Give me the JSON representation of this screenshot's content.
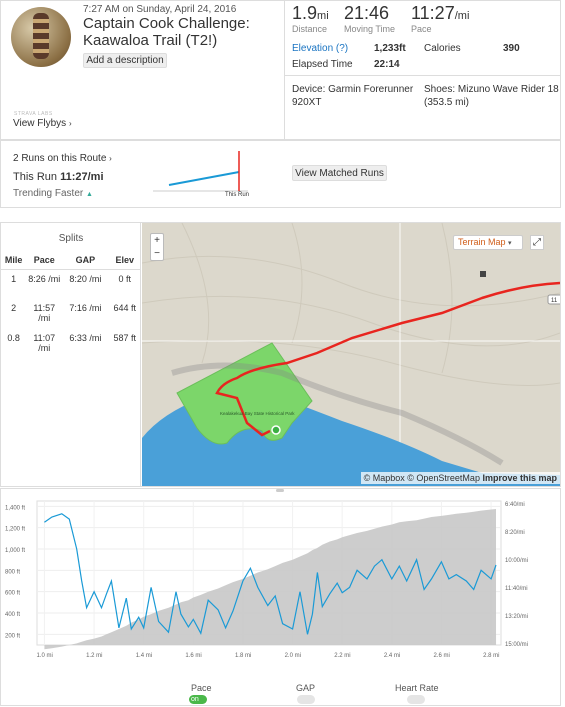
{
  "activity": {
    "date": "7:27 AM on Sunday, April 24, 2016",
    "title": "Captain Cook Challenge: Kaawaloa Trail (T2!)",
    "add_description": "Add a description"
  },
  "flyby": {
    "lab": "STRAVA LABS",
    "label": "View Flybys",
    "chevron": "›"
  },
  "stats": {
    "distance": {
      "value": "1.9",
      "unit": "mi",
      "label": "Distance"
    },
    "moving": {
      "value": "21:46",
      "label": "Moving Time"
    },
    "pace": {
      "value": "11:27",
      "unit": "/mi",
      "label": "Pace"
    }
  },
  "details": {
    "elevation_label": "Elevation (?)",
    "elevation_value": "1,233ft",
    "calories_label": "Calories",
    "calories_value": "390",
    "elapsed_label": "Elapsed Time",
    "elapsed_value": "22:14",
    "device": "Device: Garmin Forerunner 920XT",
    "shoes": "Shoes: Mizuno Wave Rider 18 (353.5 mi)"
  },
  "route": {
    "runs_on_route": "2 Runs on this Route",
    "this_run_label": "This Run",
    "this_run_value": "11:27/mi",
    "trend": "Trending Faster",
    "trend_icon": "▲",
    "spark_label": "This Run",
    "button": "View Matched Runs",
    "chevron": "›"
  },
  "splits": {
    "title": "Splits",
    "headers": [
      "Mile",
      "Pace",
      "GAP",
      "Elev"
    ],
    "rows": [
      [
        "1",
        "8:26 /mi",
        "8:20 /mi",
        "0 ft"
      ],
      [
        "2",
        "11:57 /mi",
        "7:16 /mi",
        "644 ft"
      ],
      [
        "0.8",
        "11:07 /mi",
        "6:33 /mi",
        "587 ft"
      ]
    ]
  },
  "map": {
    "zoom_in": "+",
    "zoom_out": "−",
    "terrain": "Terrain Map",
    "terrain_caret": "▾",
    "expand": "⤢",
    "road": "11",
    "park": "Kealakekua Bay State Historical Park",
    "attribution": "© Mapbox © OpenStreetMap",
    "improve": "Improve this map",
    "colors": {
      "land": "#dcd8cc",
      "water": "#4aa0d8",
      "park": "#7cd66a",
      "route": "#e8251f"
    }
  },
  "chart_data": {
    "type": "area",
    "x": [
      1.0,
      1.03,
      1.07,
      1.1,
      1.13,
      1.15,
      1.17,
      1.2,
      1.23,
      1.25,
      1.27,
      1.3,
      1.33,
      1.35,
      1.38,
      1.4,
      1.43,
      1.46,
      1.5,
      1.53,
      1.55,
      1.58,
      1.6,
      1.63,
      1.66,
      1.7,
      1.73,
      1.76,
      1.8,
      1.83,
      1.86,
      1.9,
      1.93,
      1.96,
      2.0,
      2.03,
      2.06,
      2.08,
      2.1,
      2.12,
      2.15,
      2.18,
      2.2,
      2.23,
      2.26,
      2.3,
      2.33,
      2.36,
      2.4,
      2.43,
      2.46,
      2.5,
      2.53,
      2.56,
      2.6,
      2.63,
      2.66,
      2.7,
      2.73,
      2.76,
      2.8,
      2.82
    ],
    "series": [
      {
        "name": "Pace",
        "type": "line",
        "axis": "right",
        "values": [
          1250,
          1300,
          1330,
          1280,
          1000,
          700,
          450,
          600,
          450,
          580,
          700,
          260,
          540,
          250,
          360,
          260,
          640,
          320,
          220,
          600,
          390,
          270,
          340,
          210,
          520,
          430,
          260,
          420,
          700,
          820,
          640,
          470,
          560,
          300,
          250,
          600,
          200,
          390,
          780,
          460,
          580,
          680,
          590,
          640,
          800,
          720,
          840,
          900,
          720,
          840,
          700,
          900,
          620,
          720,
          880,
          720,
          760,
          700,
          620,
          800,
          720,
          850
        ]
      },
      {
        "name": "Elevation",
        "type": "area",
        "axis": "left",
        "values": [
          60,
          70,
          85,
          100,
          115,
          130,
          145,
          160,
          180,
          200,
          220,
          250,
          280,
          310,
          340,
          365,
          390,
          420,
          450,
          480,
          500,
          520,
          545,
          570,
          600,
          630,
          660,
          690,
          720,
          750,
          780,
          810,
          840,
          870,
          900,
          930,
          960,
          990,
          1010,
          1040,
          1070,
          1090,
          1110,
          1130,
          1150,
          1170,
          1190,
          1210,
          1230,
          1250,
          1260,
          1270,
          1285,
          1300,
          1310,
          1320,
          1330,
          1340,
          1350,
          1360,
          1370,
          1375
        ]
      }
    ],
    "left_ticks": [
      "1,400 ft",
      "1,200 ft",
      "1,000 ft",
      "800 ft",
      "600 ft",
      "400 ft",
      "200 ft"
    ],
    "right_ticks": [
      "6:40/mi",
      "8:20/mi",
      "10:00/mi",
      "11:40/mi",
      "13:20/mi",
      "15:00/mi"
    ],
    "x_ticks": [
      "1.0 mi",
      "1.2 mi",
      "1.4 mi",
      "1.6 mi",
      "1.8 mi",
      "2.0 mi",
      "2.2 mi",
      "2.4 mi",
      "2.6 mi",
      "2.8 mi"
    ],
    "xlim": [
      0.97,
      2.84
    ],
    "ylim": [
      100,
      1450
    ],
    "colors": {
      "pace": "#1a9ad6",
      "elevation": "#c8c8c8"
    }
  },
  "toggles": {
    "pace": "Pace",
    "pace_state": "on",
    "gap": "GAP",
    "heart": "Heart Rate"
  }
}
